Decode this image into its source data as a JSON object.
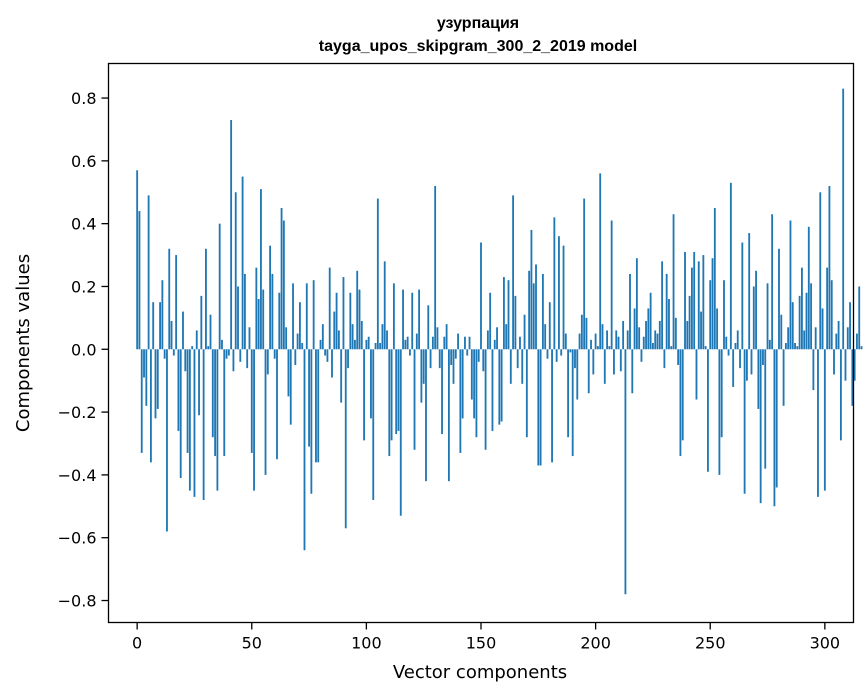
{
  "chart_data": {
    "type": "bar",
    "title": "узурпация",
    "subtitle": "tayga_upos_skipgram_300_2_2019 model",
    "xlabel": "Vector components",
    "ylabel": "Components values",
    "xlim": [
      -12.5,
      312.5
    ],
    "ylim": [
      -0.87,
      0.91
    ],
    "xticks": [
      0,
      50,
      100,
      150,
      200,
      250,
      300
    ],
    "yticks": [
      -0.8,
      -0.6,
      -0.4,
      -0.2,
      0.0,
      0.2,
      0.4,
      0.6,
      0.8
    ],
    "ytick_labels": [
      "−0.8",
      "−0.6",
      "−0.4",
      "−0.2",
      "0.0",
      "0.2",
      "0.4",
      "0.6",
      "0.8"
    ],
    "bar_color": "#1f77b4",
    "grid": false,
    "values": [
      0.57,
      0.44,
      -0.33,
      -0.09,
      -0.18,
      0.49,
      -0.36,
      0.15,
      -0.22,
      -0.19,
      0.15,
      0.22,
      -0.03,
      -0.58,
      0.32,
      0.09,
      -0.02,
      0.3,
      -0.26,
      -0.41,
      0.12,
      -0.07,
      -0.33,
      -0.45,
      0.01,
      -0.47,
      0.06,
      -0.21,
      0.17,
      -0.48,
      0.32,
      0.01,
      0.11,
      -0.28,
      -0.34,
      -0.45,
      0.4,
      0.03,
      -0.34,
      -0.03,
      -0.02,
      0.73,
      -0.07,
      0.5,
      0.2,
      -0.04,
      0.55,
      0.24,
      -0.06,
      0.07,
      -0.33,
      -0.45,
      0.26,
      0.16,
      0.51,
      0.19,
      -0.4,
      -0.08,
      0.33,
      0.24,
      -0.03,
      -0.35,
      0.18,
      0.45,
      0.41,
      0.07,
      -0.15,
      -0.24,
      0.21,
      -0.05,
      0.05,
      0.15,
      0.02,
      -0.64,
      0.21,
      -0.31,
      -0.46,
      0.22,
      -0.36,
      -0.36,
      0.03,
      0.08,
      -0.02,
      -0.04,
      0.26,
      -0.09,
      0.12,
      0.18,
      0.06,
      -0.17,
      0.23,
      -0.57,
      -0.06,
      0.18,
      0.08,
      0.03,
      0.25,
      0.19,
      0.09,
      -0.29,
      0.03,
      0.04,
      -0.22,
      -0.48,
      0.02,
      0.48,
      0.02,
      0.08,
      0.28,
      0.06,
      -0.34,
      -0.29,
      0.21,
      -0.27,
      -0.26,
      -0.53,
      0.19,
      0.03,
      0.04,
      -0.02,
      0.18,
      -0.32,
      0.05,
      0.19,
      -0.17,
      -0.11,
      -0.42,
      0.14,
      -0.06,
      0.04,
      0.52,
      0.07,
      -0.06,
      -0.27,
      0.04,
      0.08,
      -0.42,
      -0.05,
      -0.11,
      -0.03,
      0.05,
      -0.33,
      -0.22,
      0.04,
      -0.02,
      0.04,
      -0.16,
      -0.22,
      -0.28,
      -0.04,
      0.34,
      -0.07,
      -0.32,
      0.06,
      0.18,
      -0.26,
      0.03,
      0.07,
      -0.24,
      -0.23,
      0.23,
      0.08,
      0.22,
      -0.11,
      0.49,
      0.17,
      -0.06,
      0.04,
      -0.11,
      0.11,
      -0.28,
      0.25,
      0.38,
      0.21,
      0.27,
      -0.37,
      -0.37,
      0.24,
      0.08,
      -0.03,
      0.15,
      -0.36,
      0.42,
      -0.04,
      0.36,
      -0.02,
      0.33,
      0.05,
      -0.28,
      -0.01,
      -0.34,
      -0.06,
      -0.16,
      0.05,
      0.11,
      0.48,
      0.1,
      -0.14,
      0.03,
      -0.08,
      0.05,
      0.01,
      0.56,
      0.08,
      -0.11,
      0.06,
      0.01,
      0.41,
      -0.08,
      0.06,
      0.04,
      -0.07,
      0.09,
      -0.78,
      0.06,
      0.24,
      -0.14,
      0.13,
      0.29,
      0.07,
      -0.04,
      0.04,
      0.09,
      0.13,
      0.18,
      0.02,
      0.06,
      0.05,
      0.09,
      0.28,
      -0.06,
      0.24,
      0.16,
      0.01,
      0.43,
      0.1,
      -0.05,
      -0.34,
      -0.29,
      0.31,
      0.09,
      0.17,
      0.26,
      0.31,
      -0.16,
      0.28,
      0.12,
      0.3,
      0.01,
      -0.39,
      0.22,
      0.29,
      0.45,
      0.13,
      -0.4,
      -0.28,
      0.22,
      0.04,
      -0.02,
      0.53,
      -0.12,
      0.02,
      0.06,
      -0.06,
      0.34,
      -0.46,
      -0.1,
      0.37,
      -0.08,
      0.2,
      0.25,
      -0.19,
      -0.49,
      -0.05,
      -0.38,
      0.21,
      0.03,
      0.43,
      -0.5,
      -0.44,
      0.32,
      0.11,
      -0.18,
      0.02,
      0.07,
      0.41,
      0.15,
      0.02,
      0.01,
      0.17,
      0.26,
      0.06,
      0.18,
      0.39,
      0.21,
      -0.13,
      0.07,
      -0.47,
      0.5,
      0.13,
      -0.45,
      0.26,
      0.52,
      0.22,
      -0.08,
      0.05,
      0.09,
      -0.29,
      0.83,
      -0.1,
      0.07,
      0.15,
      -0.18,
      -0.1,
      0.05,
      0.2,
      0.01
    ]
  }
}
